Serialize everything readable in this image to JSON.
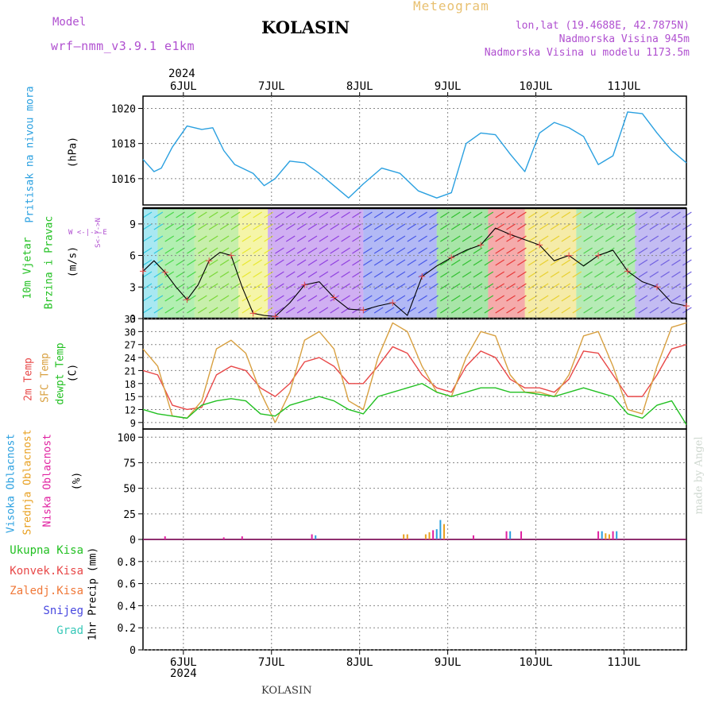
{
  "header": {
    "model_label": "Model",
    "model_name": "wrf—nmm_v3.9.1  e1km",
    "station": "KOLASIN",
    "meteogram_label": "Meteogram",
    "lonlat": "lon,lat (19.4688E, 42.7875N)",
    "elevation": "Nadmorska Visina 945m",
    "model_elevation": "Nadmorska Visina u modelu 1173.5m",
    "watermark": "made by Angel",
    "footer_station": "KOLASIN"
  },
  "colors": {
    "pressure": "#2aa0e0",
    "temp": "#e84848",
    "sfc_temp": "#d8a040",
    "dewpoint": "#22c022",
    "high_cloud": "#2aa0e0",
    "mid_cloud": "#e8a020",
    "low_cloud": "#e020a0",
    "purple_text": "#b050d0",
    "orange_text": "#e8c070"
  },
  "time_axis": {
    "year": "2024",
    "days": [
      "6JUL",
      "7JUL",
      "8JUL",
      "9JUL",
      "10JUL",
      "11JUL"
    ]
  },
  "panels": {
    "pressure": {
      "ylabel_line1": "Pritisak na nivou mora",
      "unit": "(hPa)",
      "ticks": [
        "1016",
        "1018",
        "1020"
      ]
    },
    "wind": {
      "ylabel_line1": "10m Vjetar",
      "ylabel_line2": "Brzina i Pravac",
      "unit": "(m/s)",
      "compass": "W  <-|->  E",
      "compass_ns": "S<-|->N",
      "ticks": [
        "0",
        "3",
        "6",
        "9"
      ]
    },
    "temperature": {
      "ylabel_a": "2m Temp",
      "ylabel_b": "SFC Temp",
      "ylabel_c": "dewpt Temp",
      "unit": "(C)",
      "ticks": [
        "9",
        "12",
        "15",
        "18",
        "21",
        "24",
        "27",
        "30",
        "33"
      ]
    },
    "cloud": {
      "ylabel_a": "Visoka Oblacnost",
      "ylabel_b": "Srednja Oblacnost",
      "ylabel_c": "Niska Oblacnost",
      "unit": "(%)",
      "ticks": [
        "0",
        "25",
        "50",
        "75",
        "100"
      ]
    },
    "precip": {
      "legend": [
        "Ukupna Kisa",
        "Konvek.Kisa",
        "Zaledj.Kisa",
        "Snijeg",
        "Grad"
      ],
      "unit": "1hr Precip (mm)",
      "ticks": [
        "0",
        "0.2",
        "0.4",
        "0.6",
        "0.8"
      ]
    }
  },
  "chart_data": {
    "type": "line",
    "x_unit": "hours from 2024-07-05 13:00 UTC",
    "pressure_hpa": {
      "x": [
        0,
        3,
        5,
        8,
        12,
        16,
        19,
        22,
        25,
        30,
        33,
        36,
        40,
        44,
        48,
        52,
        56,
        60,
        65,
        70,
        75,
        80,
        84,
        88,
        92,
        96,
        100,
        104,
        108,
        112,
        116,
        120,
        124,
        128,
        132,
        136,
        140,
        144,
        148
      ],
      "values": [
        1017.1,
        1016.4,
        1016.6,
        1017.8,
        1019.0,
        1018.8,
        1018.9,
        1017.6,
        1016.8,
        1016.3,
        1015.6,
        1016.0,
        1017.0,
        1016.9,
        1016.3,
        1015.6,
        1014.9,
        1015.7,
        1016.6,
        1016.3,
        1015.3,
        1014.9,
        1015.2,
        1018.0,
        1018.6,
        1018.5,
        1017.4,
        1016.4,
        1018.6,
        1019.2,
        1018.9,
        1018.4,
        1016.8,
        1017.3,
        1019.8,
        1019.7,
        1018.6,
        1017.6,
        1016.9
      ],
      "ylim": [
        1014.5,
        1020.7
      ]
    },
    "wind_speed_ms": {
      "x": [
        0,
        3,
        6,
        9,
        12,
        15,
        18,
        21,
        24,
        27,
        30,
        33,
        36,
        40,
        44,
        48,
        52,
        56,
        60,
        64,
        68,
        72,
        76,
        80,
        84,
        88,
        92,
        96,
        100,
        104,
        108,
        112,
        116,
        120,
        124,
        128,
        132,
        136,
        140,
        144,
        148
      ],
      "values": [
        4.5,
        5.5,
        4.4,
        3.0,
        1.8,
        3.2,
        5.5,
        6.3,
        6.0,
        3.0,
        0.5,
        0.3,
        0.2,
        1.5,
        3.2,
        3.5,
        2.0,
        0.9,
        0.8,
        1.2,
        1.5,
        0.3,
        4.0,
        5.0,
        5.8,
        6.5,
        7.0,
        8.6,
        8.0,
        7.5,
        7.0,
        5.5,
        6.0,
        5.0,
        6.0,
        6.5,
        4.5,
        3.5,
        3.0,
        1.5,
        1.2
      ],
      "ylim": [
        0,
        10.5
      ]
    },
    "temperature_c": {
      "ylim": [
        7.5,
        33
      ],
      "series": [
        {
          "name": "2m Temp",
          "x": [
            0,
            4,
            8,
            12,
            16,
            20,
            24,
            28,
            32,
            36,
            40,
            44,
            48,
            52,
            56,
            60,
            64,
            68,
            72,
            76,
            80,
            84,
            88,
            92,
            96,
            100,
            104,
            108,
            112,
            116,
            120,
            124,
            128,
            132,
            136,
            140,
            144,
            148
          ],
          "values": [
            21,
            20,
            13,
            12,
            12.5,
            20,
            22,
            21,
            17,
            15,
            18,
            23,
            24,
            22,
            18,
            18,
            22,
            26.5,
            25,
            20,
            17,
            16,
            22,
            25.5,
            24,
            19,
            17,
            17,
            16,
            19,
            25.5,
            25,
            20,
            15,
            15,
            20,
            26,
            27
          ]
        },
        {
          "name": "SFC Temp",
          "x": [
            0,
            4,
            8,
            12,
            16,
            20,
            24,
            28,
            32,
            36,
            40,
            44,
            48,
            52,
            56,
            60,
            64,
            68,
            72,
            76,
            80,
            84,
            88,
            92,
            96,
            100,
            104,
            108,
            112,
            116,
            120,
            124,
            128,
            132,
            136,
            140,
            144,
            148
          ],
          "values": [
            26,
            22,
            10.5,
            10,
            14,
            26,
            28,
            25,
            16,
            9,
            16,
            28,
            30,
            26,
            14,
            12,
            24,
            32,
            30,
            22,
            16,
            15,
            24,
            30,
            29,
            20,
            16,
            16,
            15,
            20,
            29,
            30,
            22,
            12,
            11,
            22,
            31,
            32
          ]
        },
        {
          "name": "dewpt Temp",
          "x": [
            0,
            4,
            8,
            12,
            16,
            20,
            24,
            28,
            32,
            36,
            40,
            44,
            48,
            52,
            56,
            60,
            64,
            68,
            72,
            76,
            80,
            84,
            88,
            92,
            96,
            100,
            104,
            108,
            112,
            116,
            120,
            124,
            128,
            132,
            136,
            140,
            144,
            148
          ],
          "values": [
            12,
            11,
            10.5,
            10,
            13,
            14,
            14.5,
            14,
            11,
            10.5,
            13,
            14,
            15,
            14,
            12,
            11,
            15,
            16,
            17,
            18,
            16,
            15,
            16,
            17,
            17,
            16,
            16,
            15.5,
            15,
            16,
            17,
            16,
            15,
            11,
            10,
            13,
            14,
            8.5
          ]
        }
      ]
    },
    "cloud_pct": {
      "ylim": [
        0,
        108
      ],
      "bars": [
        {
          "x": 6,
          "value": 3,
          "layer": "low"
        },
        {
          "x": 22,
          "value": 2,
          "layer": "low"
        },
        {
          "x": 27,
          "value": 3,
          "layer": "low"
        },
        {
          "x": 46,
          "value": 5,
          "layer": "low"
        },
        {
          "x": 47,
          "value": 4,
          "layer": "high"
        },
        {
          "x": 71,
          "value": 5,
          "layer": "mid"
        },
        {
          "x": 72,
          "value": 5,
          "layer": "mid"
        },
        {
          "x": 77,
          "value": 5,
          "layer": "mid"
        },
        {
          "x": 78,
          "value": 7,
          "layer": "mid"
        },
        {
          "x": 79,
          "value": 9,
          "layer": "low"
        },
        {
          "x": 80,
          "value": 10,
          "layer": "high"
        },
        {
          "x": 81,
          "value": 19,
          "layer": "high"
        },
        {
          "x": 82,
          "value": 15,
          "layer": "mid"
        },
        {
          "x": 90,
          "value": 4,
          "layer": "low"
        },
        {
          "x": 99,
          "value": 8,
          "layer": "low"
        },
        {
          "x": 100,
          "value": 8,
          "layer": "high"
        },
        {
          "x": 103,
          "value": 8,
          "layer": "low"
        },
        {
          "x": 124,
          "value": 8,
          "layer": "low"
        },
        {
          "x": 125,
          "value": 8,
          "layer": "high"
        },
        {
          "x": 126,
          "value": 6,
          "layer": "mid"
        },
        {
          "x": 127,
          "value": 5,
          "layer": "mid"
        },
        {
          "x": 128,
          "value": 8,
          "layer": "low"
        },
        {
          "x": 129,
          "value": 8,
          "layer": "high"
        }
      ]
    },
    "precip_mm": {
      "ylim": [
        0,
        1.0
      ],
      "values": []
    }
  }
}
